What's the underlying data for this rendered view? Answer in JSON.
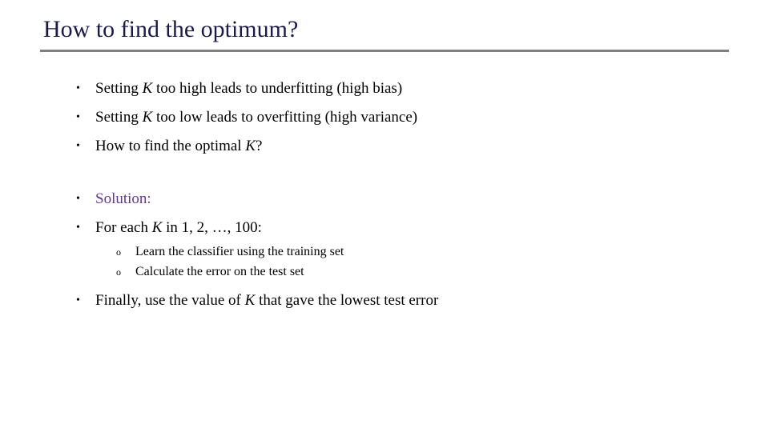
{
  "title": "How to find the optimum?",
  "colors": {
    "title_color": "#1a1a4d",
    "underline_color": "#808080",
    "text_color": "#000000",
    "solution_color": "#663399",
    "background_color": "#ffffff"
  },
  "typography": {
    "title_fontsize": 30,
    "bullet_fontsize": 19,
    "sub_bullet_fontsize": 16,
    "font_family": "Times New Roman"
  },
  "bullets": {
    "item1_pre": "Setting ",
    "item1_k": "K",
    "item1_post": " too high leads to underfitting (high bias)",
    "item2_pre": "Setting ",
    "item2_k": "K",
    "item2_post": " too low leads to overfitting (high variance)",
    "item3_pre": "How to find the optimal ",
    "item3_k": "K",
    "item3_post": "?",
    "item4": "Solution:",
    "item5_pre": "For each ",
    "item5_k": "K",
    "item5_post": " in 1, 2, …, 100:",
    "item6_pre": "Finally, use the value of ",
    "item6_k": "K",
    "item6_post": " that gave the lowest test error"
  },
  "sub_bullets": {
    "sub1": "Learn the classifier using the training set",
    "sub2": "Calculate the error on the test set"
  }
}
